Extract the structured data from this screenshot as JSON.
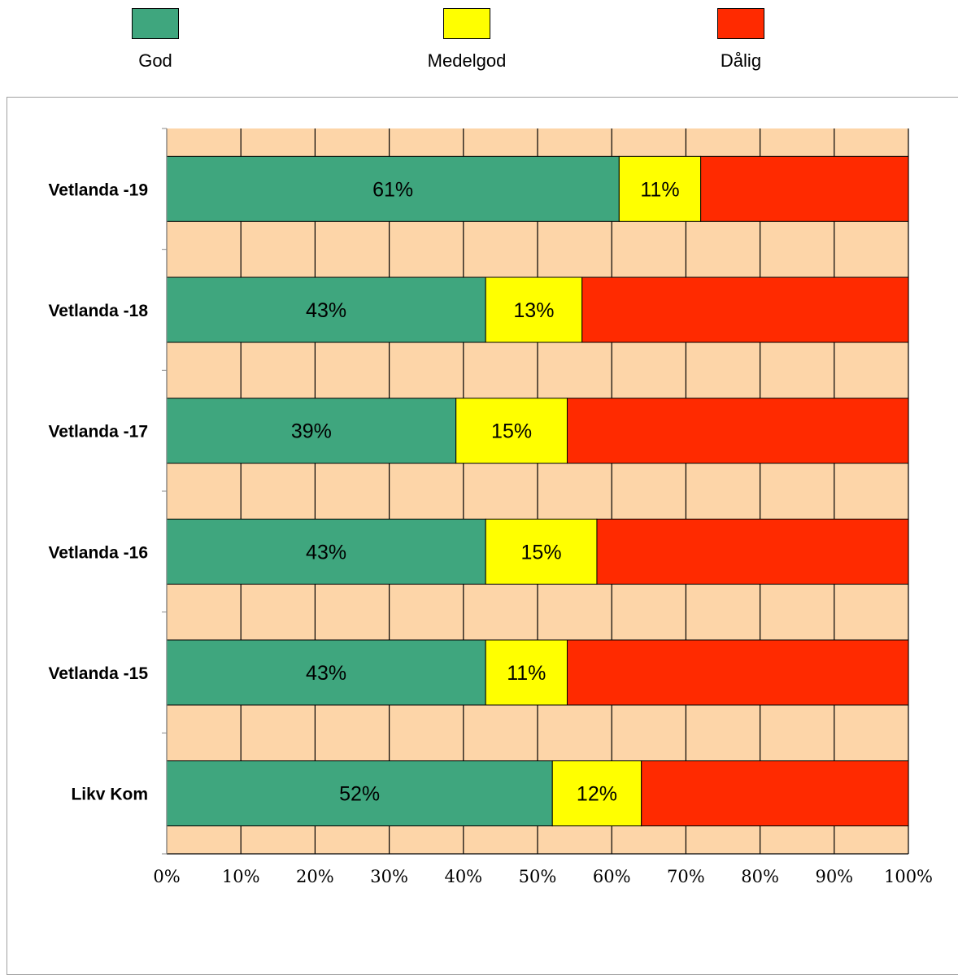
{
  "chart_data": {
    "type": "bar",
    "orientation": "horizontal",
    "stacked": "percent",
    "categories": [
      "Vetlanda -19",
      "Vetlanda -18",
      "Vetlanda -17",
      "Vetlanda -16",
      "Vetlanda -15",
      "Likv Kom"
    ],
    "series": [
      {
        "name": "God",
        "color": "#3fa67e",
        "values": [
          61,
          43,
          39,
          43,
          43,
          52
        ],
        "labels": [
          "61%",
          "43%",
          "39%",
          "43%",
          "43%",
          "52%"
        ]
      },
      {
        "name": "Medelgod",
        "color": "#ffff00",
        "values": [
          11,
          13,
          15,
          15,
          11,
          12
        ],
        "labels": [
          "11%",
          "13%",
          "15%",
          "15%",
          "11%",
          "12%"
        ]
      },
      {
        "name": "Dålig",
        "color": "#ff2a00",
        "values": [
          28,
          44,
          46,
          42,
          46,
          36
        ],
        "labels": [
          "",
          "",
          "",
          "",
          "",
          ""
        ]
      }
    ],
    "x_ticks": [
      "0%",
      "10%",
      "20%",
      "30%",
      "40%",
      "50%",
      "60%",
      "70%",
      "80%",
      "90%",
      "100%"
    ],
    "xlim": [
      0,
      100
    ],
    "legend_position": "top",
    "plot_background": "#fdd5a8",
    "grid": true
  }
}
